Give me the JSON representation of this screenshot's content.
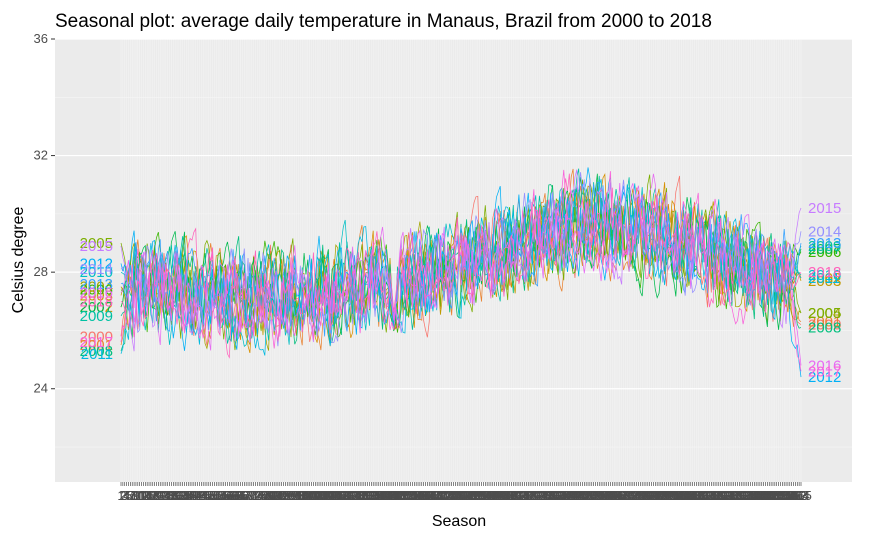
{
  "chart_data": {
    "type": "line",
    "title": "Seasonal plot: average daily temperature in Manaus, Brazil from 2000 to 2018",
    "xlabel": "Season",
    "ylabel": "Celsius degree",
    "ylim": [
      20.8,
      36
    ],
    "yticks": [
      "24",
      "28",
      "32",
      "36"
    ],
    "xlim": [
      1,
      365
    ],
    "grid": true,
    "legend": "none",
    "background": "#ebebeb",
    "gridline_color": "#ffffff",
    "series": [
      {
        "name": "2000",
        "color": "#F8766D",
        "start": 25.8,
        "end": 26.2
      },
      {
        "name": "2001",
        "color": "#EA8331",
        "start": 25.5,
        "end": 26.3
      },
      {
        "name": "2002",
        "color": "#D89000",
        "start": 26.8,
        "end": 27.8
      },
      {
        "name": "2003",
        "color": "#C09B00",
        "start": 27.2,
        "end": 27.7
      },
      {
        "name": "2004",
        "color": "#A3A500",
        "start": 27.5,
        "end": 26.6
      },
      {
        "name": "2005",
        "color": "#7CAE00",
        "start": 29.0,
        "end": 26.6
      },
      {
        "name": "2006",
        "color": "#39B600",
        "start": 27.4,
        "end": 28.7
      },
      {
        "name": "2007",
        "color": "#00BB4E",
        "start": 26.8,
        "end": 28.8
      },
      {
        "name": "2008",
        "color": "#00BF7D",
        "start": 25.3,
        "end": 26.1
      },
      {
        "name": "2009",
        "color": "#00C1A3",
        "start": 26.5,
        "end": 28.9
      },
      {
        "name": "2010",
        "color": "#00BFC4",
        "start": 28.0,
        "end": 27.9
      },
      {
        "name": "2011",
        "color": "#00BAE0",
        "start": 25.2,
        "end": 27.8
      },
      {
        "name": "2012",
        "color": "#00B0F6",
        "start": 28.3,
        "end": 24.4
      },
      {
        "name": "2013",
        "color": "#35A2FF",
        "start": 27.6,
        "end": 29.0
      },
      {
        "name": "2014",
        "color": "#9590FF",
        "start": 28.1,
        "end": 29.4
      },
      {
        "name": "2015",
        "color": "#C77CFF",
        "start": 28.9,
        "end": 30.2
      },
      {
        "name": "2016",
        "color": "#E76BF3",
        "start": 27.3,
        "end": 24.8
      },
      {
        "name": "2017",
        "color": "#FA62DB",
        "start": 25.6,
        "end": 24.6
      },
      {
        "name": "2018",
        "color": "#FF62BC",
        "start": 27.0,
        "end": 28.0
      }
    ],
    "seasonal_profile": {
      "day": [
        1,
        30,
        60,
        90,
        120,
        150,
        180,
        210,
        240,
        270,
        300,
        330,
        365
      ],
      "mean": [
        27.3,
        27.4,
        27.1,
        27.2,
        27.5,
        27.7,
        28.2,
        28.8,
        29.7,
        29.6,
        29.1,
        28.3,
        27.6
      ]
    }
  }
}
